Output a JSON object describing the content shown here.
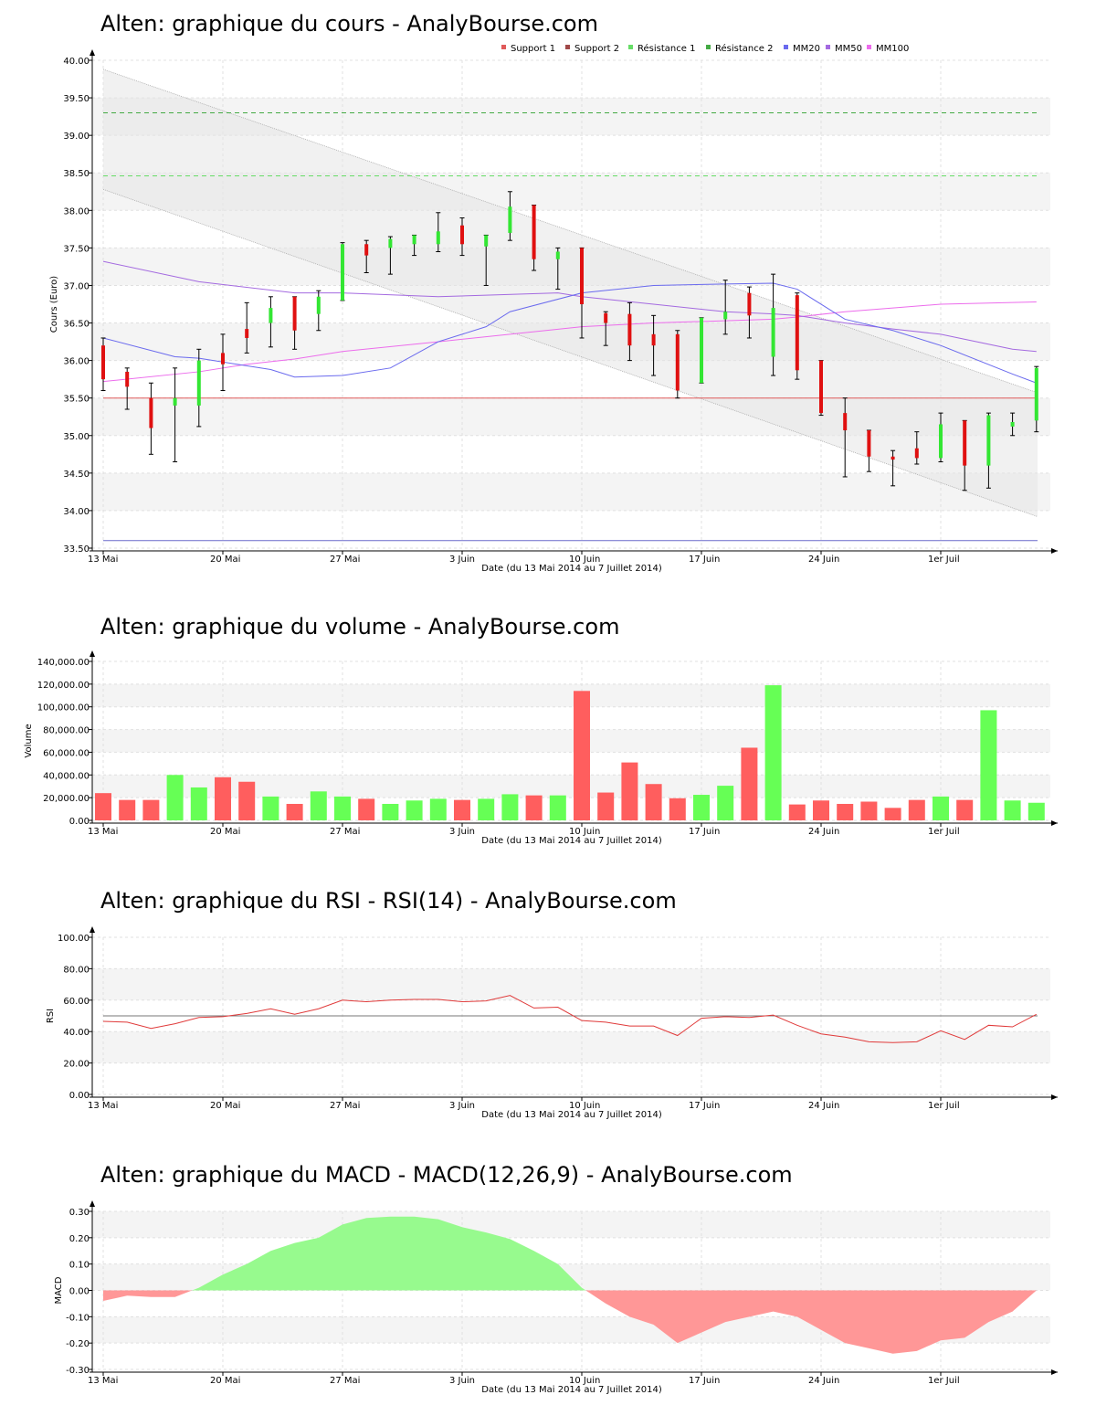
{
  "colors": {
    "candle_up": "#33e633",
    "candle_down": "#e01010",
    "support1": "#e05a5a",
    "support2": "#a04848",
    "resistance1": "#66dd66",
    "resistance2": "#44aa44",
    "mm20": "#6a6aee",
    "mm50": "#a46ae0",
    "mm100": "#ec6cec",
    "volume_up": "#66ff55",
    "volume_down": "#ff5e5e",
    "rsi_line": "#e03a3a",
    "macd_pos": "#97fa8e",
    "macd_neg": "#ff9797"
  },
  "x_axis": {
    "label": "Date (du 13 Mai 2014 au 7 Juillet 2014)",
    "ticks": [
      "13 Mai",
      "20 Mai",
      "27 Mai",
      "3 Juin",
      "10 Juin",
      "17 Juin",
      "24 Juin",
      "1er Juil"
    ],
    "dates": [
      "13 Mai",
      "14 Mai",
      "15 Mai",
      "16 Mai",
      "19 Mai",
      "20 Mai",
      "21 Mai",
      "22 Mai",
      "23 Mai",
      "26 Mai",
      "27 Mai",
      "28 Mai",
      "29 Mai",
      "30 Mai",
      "2 Juin",
      "3 Juin",
      "4 Juin",
      "5 Juin",
      "6 Juin",
      "9 Juin",
      "10 Juin",
      "11 Juin",
      "12 Juin",
      "13 Juin",
      "16 Juin",
      "17 Juin",
      "18 Juin",
      "19 Juin",
      "20 Juin",
      "23 Juin",
      "24 Juin",
      "25 Juin",
      "26 Juin",
      "27 Juin",
      "30 Juin",
      "1er Juil",
      "2 Juil",
      "3 Juil",
      "4 Juil",
      "7 Juil"
    ]
  },
  "chart_data": [
    {
      "type": "candlestick",
      "title": "Alten: graphique du cours - AnalyBourse.com",
      "ylabel": "Cours (Euro)",
      "ylim": [
        33.5,
        40.0
      ],
      "yticks": [
        "33.50",
        "34.00",
        "34.50",
        "35.00",
        "35.50",
        "36.00",
        "36.50",
        "37.00",
        "37.50",
        "38.00",
        "38.50",
        "39.00",
        "39.50",
        "40.00"
      ],
      "legend": [
        "Support 1",
        "Support 2",
        "Résistance 1",
        "Résistance 2",
        "MM20",
        "MM50",
        "MM100"
      ],
      "legend_position": "top-right",
      "candles": [
        {
          "o": 36.2,
          "h": 36.3,
          "l": 35.6,
          "c": 35.75
        },
        {
          "o": 35.85,
          "h": 35.9,
          "l": 35.35,
          "c": 35.65
        },
        {
          "o": 35.5,
          "h": 35.7,
          "l": 34.75,
          "c": 35.1
        },
        {
          "o": 35.4,
          "h": 35.9,
          "l": 34.65,
          "c": 35.5
        },
        {
          "o": 35.4,
          "h": 36.15,
          "l": 35.12,
          "c": 36.0
        },
        {
          "o": 36.1,
          "h": 36.35,
          "l": 35.6,
          "c": 35.95
        },
        {
          "o": 36.42,
          "h": 36.77,
          "l": 36.1,
          "c": 36.3
        },
        {
          "o": 36.5,
          "h": 36.85,
          "l": 36.18,
          "c": 36.7
        },
        {
          "o": 36.85,
          "h": 36.85,
          "l": 36.15,
          "c": 36.4
        },
        {
          "o": 36.62,
          "h": 36.93,
          "l": 36.4,
          "c": 36.85
        },
        {
          "o": 36.8,
          "h": 37.57,
          "l": 36.8,
          "c": 37.55
        },
        {
          "o": 37.55,
          "h": 37.6,
          "l": 37.17,
          "c": 37.4
        },
        {
          "o": 37.5,
          "h": 37.65,
          "l": 37.15,
          "c": 37.62
        },
        {
          "o": 37.55,
          "h": 37.67,
          "l": 37.4,
          "c": 37.67
        },
        {
          "o": 37.55,
          "h": 37.97,
          "l": 37.45,
          "c": 37.72
        },
        {
          "o": 37.8,
          "h": 37.9,
          "l": 37.4,
          "c": 37.55
        },
        {
          "o": 37.52,
          "h": 37.67,
          "l": 37.0,
          "c": 37.67
        },
        {
          "o": 37.7,
          "h": 38.25,
          "l": 37.6,
          "c": 38.05
        },
        {
          "o": 38.07,
          "h": 38.07,
          "l": 37.2,
          "c": 37.35
        },
        {
          "o": 37.35,
          "h": 37.5,
          "l": 36.95,
          "c": 37.45
        },
        {
          "o": 37.5,
          "h": 37.5,
          "l": 36.3,
          "c": 36.75
        },
        {
          "o": 36.63,
          "h": 36.65,
          "l": 36.2,
          "c": 36.5
        },
        {
          "o": 36.62,
          "h": 36.77,
          "l": 36.0,
          "c": 36.2
        },
        {
          "o": 36.35,
          "h": 36.6,
          "l": 35.8,
          "c": 36.2
        },
        {
          "o": 36.35,
          "h": 36.4,
          "l": 35.5,
          "c": 35.6
        },
        {
          "o": 35.7,
          "h": 36.57,
          "l": 35.7,
          "c": 36.57
        },
        {
          "o": 36.55,
          "h": 37.07,
          "l": 36.35,
          "c": 36.65
        },
        {
          "o": 36.9,
          "h": 36.98,
          "l": 36.3,
          "c": 36.6
        },
        {
          "o": 36.05,
          "h": 37.15,
          "l": 35.8,
          "c": 36.7
        },
        {
          "o": 36.87,
          "h": 36.9,
          "l": 35.75,
          "c": 35.87
        },
        {
          "o": 36.0,
          "h": 36.0,
          "l": 35.27,
          "c": 35.3
        },
        {
          "o": 35.3,
          "h": 35.5,
          "l": 34.45,
          "c": 35.07
        },
        {
          "o": 35.07,
          "h": 35.07,
          "l": 34.52,
          "c": 34.72
        },
        {
          "o": 34.72,
          "h": 34.8,
          "l": 34.33,
          "c": 34.68
        },
        {
          "o": 34.83,
          "h": 35.05,
          "l": 34.62,
          "c": 34.7
        },
        {
          "o": 34.7,
          "h": 35.3,
          "l": 34.65,
          "c": 35.15
        },
        {
          "o": 35.2,
          "h": 35.2,
          "l": 34.27,
          "c": 34.6
        },
        {
          "o": 34.6,
          "h": 35.3,
          "l": 34.3,
          "c": 35.27
        },
        {
          "o": 35.12,
          "h": 35.3,
          "l": 35.0,
          "c": 35.18
        },
        {
          "o": 35.2,
          "h": 35.92,
          "l": 35.05,
          "c": 35.9
        }
      ],
      "levels": {
        "support1": 35.5,
        "support2": 33.6,
        "resistance1": 38.46,
        "resistance2": 39.3
      },
      "trend_channel": {
        "upper": [
          39.88,
          35.57
        ],
        "lower": [
          38.28,
          33.92
        ]
      },
      "mm20": [
        [
          0,
          36.3
        ],
        [
          3,
          36.05
        ],
        [
          4,
          36.03
        ],
        [
          7,
          35.88
        ],
        [
          8,
          35.78
        ],
        [
          10,
          35.8
        ],
        [
          12,
          35.9
        ],
        [
          14,
          36.25
        ],
        [
          16,
          36.45
        ],
        [
          17,
          36.65
        ],
        [
          20,
          36.9
        ],
        [
          23,
          37.0
        ],
        [
          26,
          37.02
        ],
        [
          28,
          37.03
        ],
        [
          29,
          36.95
        ],
        [
          31,
          36.55
        ],
        [
          33,
          36.4
        ],
        [
          35,
          36.2
        ],
        [
          38,
          35.82
        ],
        [
          39,
          35.7
        ]
      ],
      "mm50": [
        [
          0,
          37.32
        ],
        [
          4,
          37.05
        ],
        [
          8,
          36.9
        ],
        [
          10,
          36.9
        ],
        [
          14,
          36.85
        ],
        [
          16,
          36.87
        ],
        [
          19,
          36.9
        ],
        [
          20,
          36.85
        ],
        [
          23,
          36.75
        ],
        [
          26,
          36.65
        ],
        [
          28,
          36.62
        ],
        [
          29,
          36.6
        ],
        [
          31,
          36.5
        ],
        [
          33,
          36.42
        ],
        [
          35,
          36.35
        ],
        [
          38,
          36.15
        ],
        [
          39,
          36.12
        ]
      ],
      "mm100": [
        [
          0,
          35.72
        ],
        [
          4,
          35.85
        ],
        [
          6,
          35.95
        ],
        [
          8,
          36.02
        ],
        [
          10,
          36.12
        ],
        [
          14,
          36.25
        ],
        [
          17,
          36.35
        ],
        [
          20,
          36.45
        ],
        [
          23,
          36.5
        ],
        [
          26,
          36.53
        ],
        [
          28,
          36.55
        ],
        [
          29,
          36.58
        ],
        [
          31,
          36.65
        ],
        [
          33,
          36.7
        ],
        [
          35,
          36.75
        ],
        [
          39,
          36.78
        ]
      ]
    },
    {
      "type": "bar",
      "title": "Alten: graphique du volume - AnalyBourse.com",
      "ylabel": "Volume",
      "ylim": [
        0,
        140000
      ],
      "yticks": [
        "0.00",
        "20,000.00",
        "40,000.00",
        "60,000.00",
        "80,000.00",
        "100,000.00",
        "120,000.00",
        "140,000.00"
      ],
      "values": [
        24000,
        18000,
        18000,
        40000,
        29000,
        38000,
        34000,
        21000,
        14500,
        25500,
        21000,
        19000,
        14500,
        17500,
        19000,
        18000,
        19000,
        23000,
        22000,
        22000,
        114000,
        24500,
        51000,
        32000,
        19500,
        22500,
        30500,
        64000,
        119000,
        14000,
        17500,
        14500,
        16500,
        11000,
        18000,
        21000,
        18000,
        97000,
        17500,
        15500
      ],
      "direction": [
        "down",
        "down",
        "down",
        "up",
        "up",
        "down",
        "down",
        "up",
        "down",
        "up",
        "up",
        "down",
        "up",
        "up",
        "up",
        "down",
        "up",
        "up",
        "down",
        "up",
        "down",
        "down",
        "down",
        "down",
        "down",
        "up",
        "up",
        "down",
        "up",
        "down",
        "down",
        "down",
        "down",
        "down",
        "down",
        "up",
        "down",
        "up",
        "up",
        "up"
      ]
    },
    {
      "type": "line",
      "title": "Alten: graphique du RSI - RSI(14) - AnalyBourse.com",
      "ylabel": "RSI",
      "ylim": [
        0,
        100
      ],
      "yticks": [
        "0.00",
        "20.00",
        "40.00",
        "60.00",
        "80.00",
        "100.00"
      ],
      "reference": 50,
      "values": [
        46.5,
        46.0,
        42.0,
        45.0,
        49.0,
        49.5,
        51.5,
        54.5,
        51.0,
        54.5,
        60.0,
        59.0,
        60.0,
        60.5,
        60.5,
        59.0,
        59.5,
        63.0,
        55.0,
        55.5,
        47.0,
        46.0,
        43.5,
        43.5,
        37.5,
        48.5,
        49.5,
        49.0,
        50.5,
        44.0,
        38.5,
        36.5,
        33.5,
        33.0,
        33.5,
        40.5,
        35.0,
        44.0,
        43.0,
        51.0
      ]
    },
    {
      "type": "area",
      "title": "Alten: graphique du MACD - MACD(12,26,9) - AnalyBourse.com",
      "ylabel": "MACD",
      "ylim": [
        -0.3,
        0.3
      ],
      "yticks": [
        "-0.30",
        "-0.20",
        "-0.10",
        "0.00",
        "0.10",
        "0.20",
        "0.30"
      ],
      "values": [
        -0.04,
        -0.02,
        -0.025,
        -0.025,
        0.01,
        0.06,
        0.1,
        0.15,
        0.18,
        0.2,
        0.25,
        0.275,
        0.28,
        0.28,
        0.27,
        0.24,
        0.22,
        0.195,
        0.15,
        0.1,
        0.01,
        -0.05,
        -0.1,
        -0.13,
        -0.2,
        -0.16,
        -0.12,
        -0.1,
        -0.08,
        -0.1,
        -0.15,
        -0.2,
        -0.22,
        -0.24,
        -0.23,
        -0.19,
        -0.18,
        -0.12,
        -0.08,
        0.0
      ]
    }
  ]
}
